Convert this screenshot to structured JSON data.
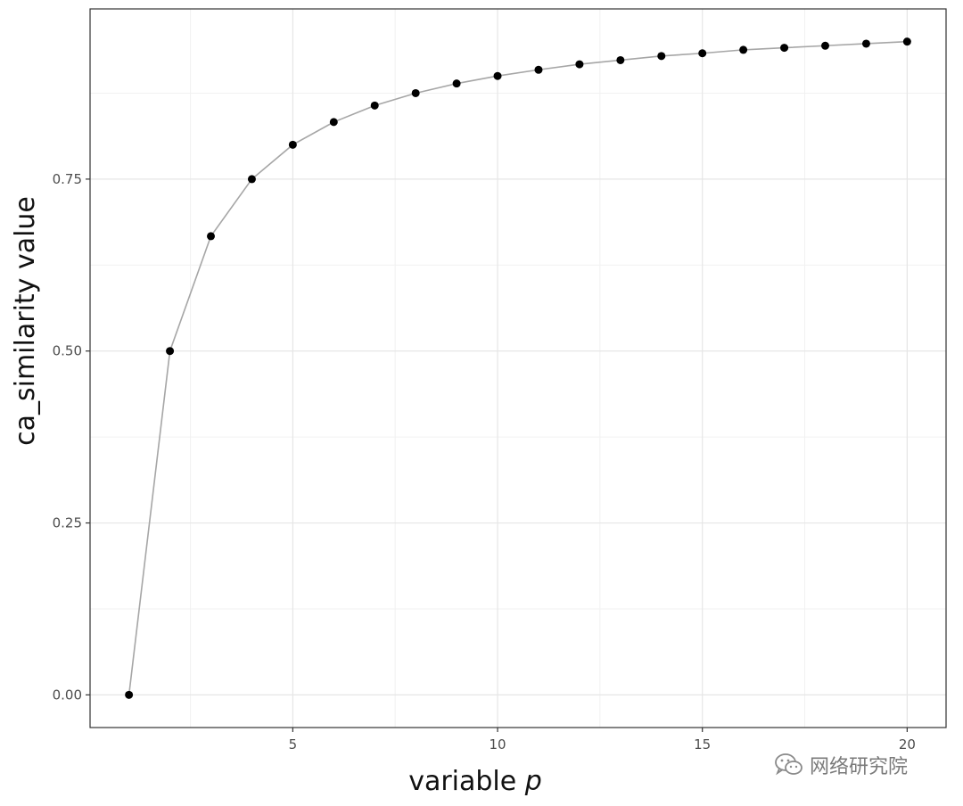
{
  "chart_data": {
    "type": "line",
    "x": [
      1,
      2,
      3,
      4,
      5,
      6,
      7,
      8,
      9,
      10,
      11,
      12,
      13,
      14,
      15,
      16,
      17,
      18,
      19,
      20
    ],
    "series": [
      {
        "values": [
          0.0,
          0.5,
          0.667,
          0.75,
          0.8,
          0.833,
          0.857,
          0.875,
          0.889,
          0.9,
          0.909,
          0.917,
          0.923,
          0.929,
          0.933,
          0.938,
          0.941,
          0.944,
          0.947,
          0.95
        ]
      }
    ],
    "xlabel": "variable p",
    "ylabel": "ca_similarity value",
    "xlim": [
      0.05,
      20.95
    ],
    "ylim": [
      -0.0475,
      0.9975
    ],
    "xticks": [
      5,
      10,
      15,
      20
    ],
    "xtick_labels": [
      "5",
      "10",
      "15",
      "20"
    ],
    "yticks": [
      0,
      0.25,
      0.5,
      0.75
    ],
    "ytick_labels": [
      "0.00",
      "0.25",
      "0.50",
      "0.75"
    ],
    "grid": true,
    "line_color": "#a6a6a6",
    "point_color": "#000000"
  },
  "watermark": {
    "text": "网络研究院",
    "icon": "wechat-icon"
  }
}
